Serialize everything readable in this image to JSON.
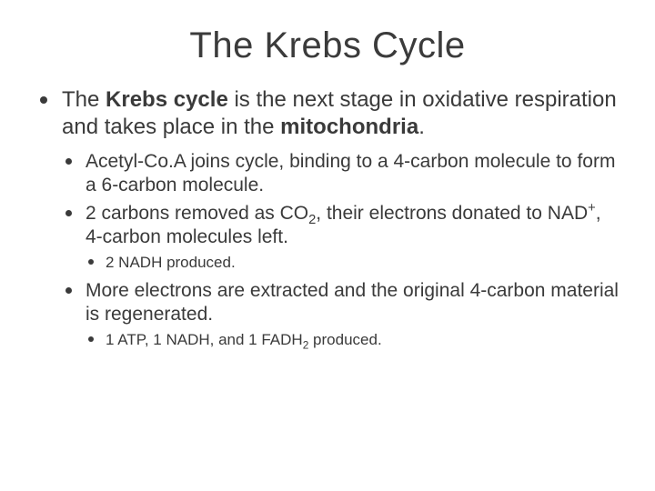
{
  "title": "The Krebs Cycle",
  "colors": {
    "text": "#3a3a3a",
    "background": "#ffffff",
    "bullet": "#3a3a3a"
  },
  "fonts": {
    "title_size": 40,
    "l1_size": 24,
    "l2_size": 21,
    "l3_size": 17,
    "family": "Arial"
  },
  "body": {
    "intro_pre": "The ",
    "intro_bold1": "Krebs cycle",
    "intro_mid": " is the next stage in oxidative respiration and takes place in the ",
    "intro_bold2": "mitochondria",
    "intro_post": ".",
    "p1": "Acetyl-Co.A joins cycle, binding to a 4-carbon molecule to form a 6-carbon molecule.",
    "p2_a": "2 carbons removed as CO",
    "p2_sub": "2",
    "p2_b": ", their electrons donated to NAD",
    "p2_sup": "+",
    "p2_c": ", 4-carbon molecules left.",
    "p2_detail": "2 NADH produced.",
    "p3": "More electrons are extracted and the original 4-carbon material is regenerated.",
    "p3_detail_a": "1 ATP, 1 NADH, and 1 FADH",
    "p3_detail_sub": "2",
    "p3_detail_b": " produced."
  }
}
